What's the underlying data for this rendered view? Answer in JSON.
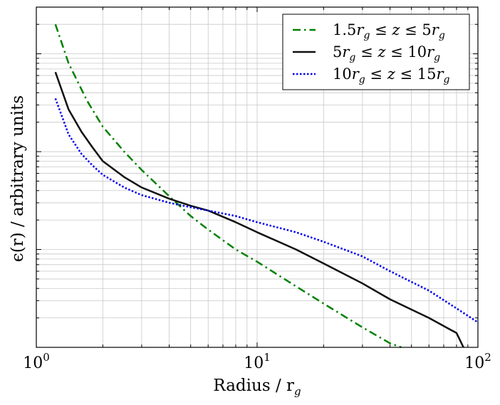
{
  "chart_data": {
    "type": "line",
    "xscale": "log",
    "yscale": "log",
    "xlim": [
      1,
      100
    ],
    "ylim": [
      0.0001,
      0.3
    ],
    "grid": true,
    "legend_position": "top-right",
    "xlabel": {
      "main": "Radius / r",
      "sub": "g"
    },
    "ylabel": "ϵ(r) / arbitrary units",
    "x_ticks": [
      {
        "base": "10",
        "exp": "0",
        "value": 1
      },
      {
        "base": "10",
        "exp": "1",
        "value": 10
      },
      {
        "base": "10",
        "exp": "2",
        "value": 100
      }
    ],
    "series": [
      {
        "name": "1.5r_g ≤ z ≤ 5r_g",
        "legend_parts": [
          "1.5",
          "r",
          "g",
          " ≤ ",
          "z",
          " ≤ ",
          "5",
          "r",
          "g"
        ],
        "color": "#008000",
        "style": "dashdot",
        "points": [
          [
            1.22,
            0.2
          ],
          [
            1.4,
            0.08
          ],
          [
            1.7,
            0.033
          ],
          [
            2.0,
            0.018
          ],
          [
            2.5,
            0.01
          ],
          [
            3.0,
            0.0065
          ],
          [
            4.0,
            0.0035
          ],
          [
            5.0,
            0.0022
          ],
          [
            6.0,
            0.0016
          ],
          [
            8.0,
            0.001
          ],
          [
            10.0,
            0.00075
          ],
          [
            15.0,
            0.00042
          ],
          [
            20.0,
            0.00028
          ],
          [
            30.0,
            0.00016
          ],
          [
            40.0,
            0.00011
          ],
          [
            45.0,
            0.0001
          ]
        ]
      },
      {
        "name": "5r_g ≤ z ≤ 10r_g",
        "legend_parts": [
          "5",
          "r",
          "g",
          " ≤ ",
          "z",
          " ≤ ",
          "10",
          "r",
          "g"
        ],
        "color": "#111111",
        "style": "solid",
        "points": [
          [
            1.22,
            0.065
          ],
          [
            1.4,
            0.027
          ],
          [
            1.6,
            0.016
          ],
          [
            1.8,
            0.011
          ],
          [
            2.0,
            0.008
          ],
          [
            2.5,
            0.0055
          ],
          [
            3.0,
            0.0043
          ],
          [
            4.0,
            0.0033
          ],
          [
            5.0,
            0.0028
          ],
          [
            6.0,
            0.0025
          ],
          [
            8.0,
            0.0019
          ],
          [
            10.0,
            0.0015
          ],
          [
            15.0,
            0.001
          ],
          [
            20.0,
            0.00072
          ],
          [
            30.0,
            0.00045
          ],
          [
            40.0,
            0.00031
          ],
          [
            60.0,
            0.0002
          ],
          [
            80.0,
            0.00014
          ],
          [
            86.0,
            0.0001
          ]
        ]
      },
      {
        "name": "10r_g ≤ z ≤ 15r_g",
        "legend_parts": [
          "10",
          "r",
          "g",
          " ≤ ",
          "z",
          " ≤ ",
          "15",
          "r",
          "g"
        ],
        "color": "#0000ee",
        "style": "dotted",
        "points": [
          [
            1.22,
            0.035
          ],
          [
            1.4,
            0.015
          ],
          [
            1.6,
            0.0095
          ],
          [
            1.8,
            0.0072
          ],
          [
            2.0,
            0.0058
          ],
          [
            2.5,
            0.0043
          ],
          [
            3.0,
            0.0036
          ],
          [
            4.0,
            0.003
          ],
          [
            5.0,
            0.0027
          ],
          [
            6.0,
            0.0025
          ],
          [
            8.0,
            0.0022
          ],
          [
            10.0,
            0.0019
          ],
          [
            15.0,
            0.0015
          ],
          [
            20.0,
            0.0012
          ],
          [
            30.0,
            0.00085
          ],
          [
            40.0,
            0.0006
          ],
          [
            60.0,
            0.00038
          ],
          [
            80.0,
            0.00025
          ],
          [
            100.0,
            0.00018
          ]
        ]
      }
    ]
  }
}
